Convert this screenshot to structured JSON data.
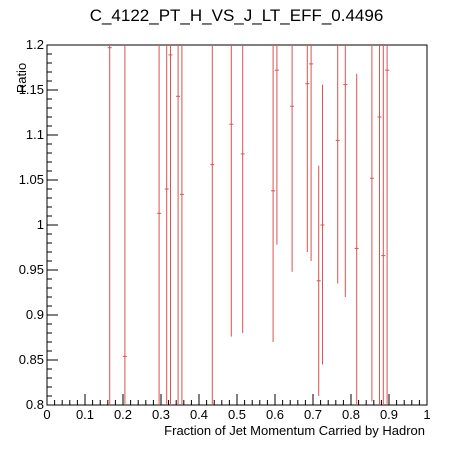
{
  "chart_data": {
    "type": "scatter",
    "title": "C_4122_PT_H_VS_J_LT_EFF_0.4496",
    "xlabel": "Fraction of Jet Momentum Carried by Hadron",
    "ylabel": "Ratio",
    "xlim": [
      0,
      1
    ],
    "ylim": [
      0.8,
      1.2
    ],
    "xticks": [
      0,
      0.1,
      0.2,
      0.3,
      0.4,
      0.5,
      0.6,
      0.7,
      0.8,
      0.9,
      1
    ],
    "xtick_labels": [
      "0",
      "0.1",
      "0.2",
      "0.3",
      "0.4",
      "0.5",
      "0.6",
      "0.7",
      "0.8",
      "0.9",
      "1"
    ],
    "yticks": [
      0.8,
      0.85,
      0.9,
      0.95,
      1.0,
      1.05,
      1.1,
      1.15,
      1.2
    ],
    "ytick_labels": [
      "0.8",
      "0.85",
      "0.9",
      "0.95",
      "1",
      "1.05",
      "1.1",
      "1.15",
      "1.2"
    ],
    "grid": false,
    "legend": "none",
    "series_color": "#d9534f",
    "points": [
      {
        "x": 0.165,
        "y": 1.197,
        "ylow": 0.8,
        "yhigh": 1.2
      },
      {
        "x": 0.205,
        "y": 0.854,
        "ylow": 0.8,
        "yhigh": 1.2
      },
      {
        "x": 0.295,
        "y": 1.013,
        "ylow": 0.8,
        "yhigh": 1.2
      },
      {
        "x": 0.315,
        "y": 1.04,
        "ylow": 0.8,
        "yhigh": 1.2
      },
      {
        "x": 0.325,
        "y": 1.189,
        "ylow": 0.8,
        "yhigh": 1.2
      },
      {
        "x": 0.345,
        "y": 1.143,
        "ylow": 0.8,
        "yhigh": 1.2
      },
      {
        "x": 0.355,
        "y": 1.034,
        "ylow": 0.8,
        "yhigh": 1.2
      },
      {
        "x": 0.435,
        "y": 1.067,
        "ylow": 0.8,
        "yhigh": 1.2
      },
      {
        "x": 0.485,
        "y": 1.112,
        "ylow": 0.876,
        "yhigh": 1.2
      },
      {
        "x": 0.515,
        "y": 1.079,
        "ylow": 0.88,
        "yhigh": 1.2
      },
      {
        "x": 0.595,
        "y": 1.038,
        "ylow": 0.87,
        "yhigh": 1.2
      },
      {
        "x": 0.605,
        "y": 1.172,
        "ylow": 0.978,
        "yhigh": 1.2
      },
      {
        "x": 0.645,
        "y": 1.132,
        "ylow": 0.948,
        "yhigh": 1.2
      },
      {
        "x": 0.685,
        "y": 1.157,
        "ylow": 0.97,
        "yhigh": 1.2
      },
      {
        "x": 0.695,
        "y": 1.179,
        "ylow": 0.96,
        "yhigh": 1.2
      },
      {
        "x": 0.715,
        "y": 0.938,
        "ylow": 0.81,
        "yhigh": 1.066
      },
      {
        "x": 0.725,
        "y": 1.0,
        "ylow": 0.845,
        "yhigh": 1.156
      },
      {
        "x": 0.765,
        "y": 1.094,
        "ylow": 0.935,
        "yhigh": 1.2
      },
      {
        "x": 0.785,
        "y": 1.156,
        "ylow": 0.92,
        "yhigh": 1.2
      },
      {
        "x": 0.815,
        "y": 0.974,
        "ylow": 0.8,
        "yhigh": 1.168
      },
      {
        "x": 0.855,
        "y": 1.052,
        "ylow": 0.804,
        "yhigh": 1.2
      },
      {
        "x": 0.875,
        "y": 1.12,
        "ylow": 0.8,
        "yhigh": 1.2
      },
      {
        "x": 0.885,
        "y": 0.966,
        "ylow": 0.8,
        "yhigh": 1.2
      },
      {
        "x": 0.895,
        "y": 1.172,
        "ylow": 0.8,
        "yhigh": 1.2
      }
    ]
  }
}
